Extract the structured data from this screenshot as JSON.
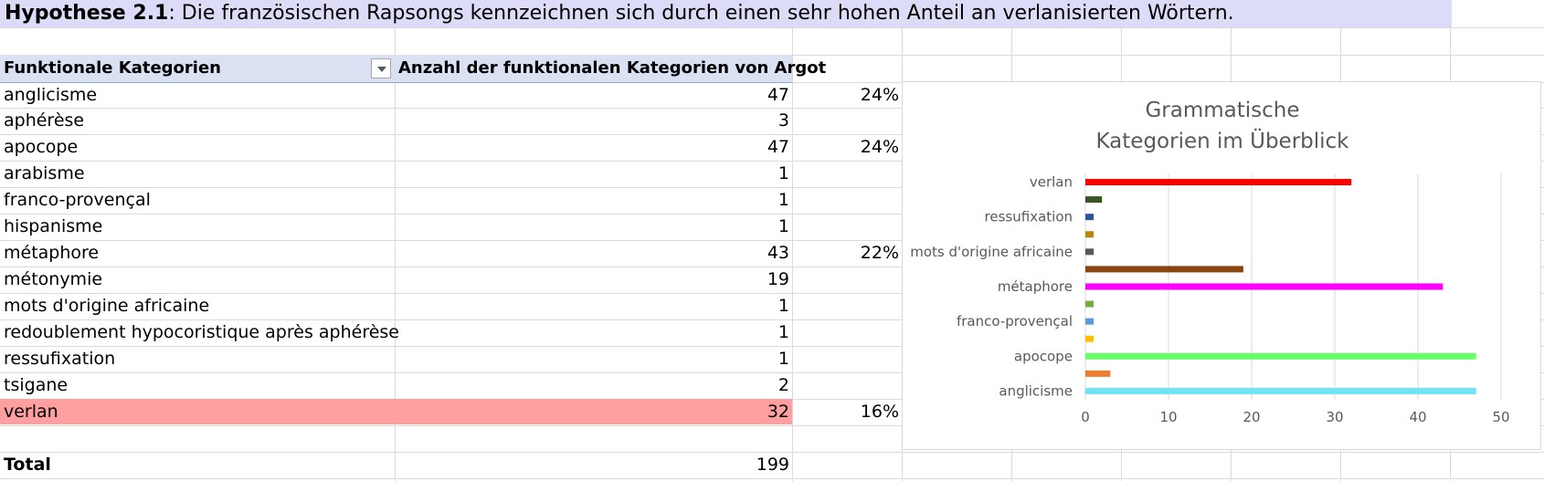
{
  "header": {
    "title_bold": "Hypothese 2.1",
    "title_rest": ": Die französischen Rapsongs kennzeichnen sich durch einen sehr hohen Anteil an verlanisierten Wörtern."
  },
  "table": {
    "col1_header": "Funktionale Kategorien",
    "col2_header": "Anzahl der funktionalen Kategorien von Argot",
    "rows": [
      {
        "label": "anglicisme",
        "value": "47",
        "pct": "24%"
      },
      {
        "label": "aphérèse",
        "value": "3",
        "pct": ""
      },
      {
        "label": "apocope",
        "value": "47",
        "pct": "24%"
      },
      {
        "label": "arabisme",
        "value": "1",
        "pct": ""
      },
      {
        "label": "franco-provençal",
        "value": "1",
        "pct": ""
      },
      {
        "label": "hispanisme",
        "value": "1",
        "pct": ""
      },
      {
        "label": "métaphore",
        "value": "43",
        "pct": "22%"
      },
      {
        "label": "métonymie",
        "value": "19",
        "pct": ""
      },
      {
        "label": "mots d'origine africaine",
        "value": "1",
        "pct": ""
      },
      {
        "label": "redoublement hypocoristique après aphérèse",
        "value": "1",
        "pct": ""
      },
      {
        "label": "ressufixation",
        "value": "1",
        "pct": ""
      },
      {
        "label": "tsigane",
        "value": "2",
        "pct": ""
      },
      {
        "label": "verlan",
        "value": "32",
        "pct": "16%"
      }
    ],
    "total_label": "Total",
    "total_value": "199",
    "highlight_color": "#ff9f9f"
  },
  "chart_data": {
    "type": "bar",
    "orientation": "horizontal",
    "title": "Grammatische Kategorien im Überblick",
    "title_lines": [
      "Grammatische",
      "Kategorien im Überblick"
    ],
    "categories": [
      "anglicisme",
      "aphérèse",
      "apocope",
      "arabisme",
      "franco-provençal",
      "hispanisme",
      "métaphore",
      "métonymie",
      "mots d'origine africaine",
      "redoublement hypocoristique après aphérèse",
      "ressufixation",
      "tsigane",
      "verlan"
    ],
    "category_labels_shown": [
      "anglicisme",
      "",
      "apocope",
      "",
      "franco-provençal",
      "",
      "métaphore",
      "",
      "mots d'origine africaine",
      "",
      "ressufixation",
      "",
      "verlan"
    ],
    "values": [
      47,
      3,
      47,
      1,
      1,
      1,
      43,
      19,
      1,
      1,
      1,
      2,
      32
    ],
    "colors": [
      "#6fe4f4",
      "#ed7d31",
      "#66ff66",
      "#ffc000",
      "#5b9bd5",
      "#70ad47",
      "#ff00ff",
      "#8b4513",
      "#595959",
      "#b8860b",
      "#2f5597",
      "#375623",
      "#ff0000"
    ],
    "xlim": [
      0,
      50
    ],
    "xticks": [
      "0",
      "10",
      "20",
      "30",
      "40",
      "50"
    ],
    "grid": true,
    "legend": "none"
  }
}
